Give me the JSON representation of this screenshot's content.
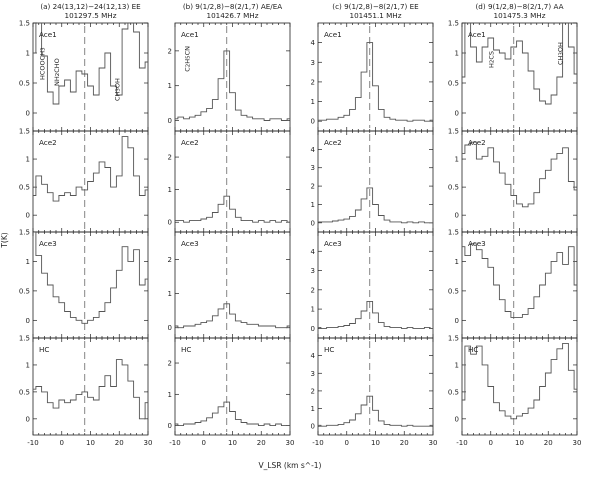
{
  "chart_data": {
    "type": "line",
    "line_shape": "step",
    "xlabel": "V_LSR (km s^-1)",
    "ylabel": "T(K)",
    "xlim": [
      -10,
      30
    ],
    "x_ticks": [
      "-10",
      "0",
      "10",
      "20",
      "30"
    ],
    "vlsr_marker": 8,
    "row_labels": [
      "Ace1",
      "Ace2",
      "Ace3",
      "HC"
    ],
    "columns": [
      {
        "title": "(a) 24(13,12)−24(12,13) EE",
        "subtitle": "101297.5 MHz",
        "ylim": [
          -0.3,
          1.5
        ],
        "y_ticks": [
          "0",
          "0.5",
          "1",
          "1.5"
        ],
        "annotations": [
          {
            "text": "HCOOCH3",
            "x": -6,
            "y": 0.55
          },
          {
            "text": "NH2CHO",
            "x": -1,
            "y": 0.45
          },
          {
            "text": "CH3OH",
            "x": 20,
            "y": 0.2
          }
        ],
        "rows": [
          {
            "x": [
              -10,
              -8,
              -6,
              -4,
              -2,
              0,
              2,
              4,
              6,
              8,
              10,
              12,
              14,
              16,
              18,
              20,
              22,
              24,
              26,
              28,
              30
            ],
            "y": [
              1.0,
              1.55,
              0.95,
              0.35,
              0.15,
              0.45,
              0.55,
              0.35,
              0.7,
              0.65,
              0.45,
              0.3,
              0.75,
              1.0,
              0.45,
              0.3,
              1.4,
              1.6,
              1.35,
              0.75,
              0.85
            ]
          },
          {
            "x": [
              -10,
              -8,
              -6,
              -4,
              -2,
              0,
              2,
              4,
              6,
              8,
              10,
              12,
              14,
              16,
              18,
              20,
              22,
              24,
              26,
              28,
              30
            ],
            "y": [
              0.35,
              0.7,
              0.55,
              0.4,
              0.25,
              0.35,
              0.4,
              0.35,
              0.5,
              0.45,
              0.6,
              0.75,
              0.95,
              0.85,
              0.5,
              0.7,
              1.4,
              1.2,
              0.7,
              0.35,
              0.45
            ]
          },
          {
            "x": [
              -10,
              -8,
              -6,
              -4,
              -2,
              0,
              2,
              4,
              6,
              8,
              10,
              12,
              14,
              16,
              18,
              20,
              22,
              24,
              26,
              28,
              30
            ],
            "y": [
              1.5,
              1.1,
              0.8,
              0.6,
              0.4,
              0.3,
              0.15,
              0.05,
              0.0,
              -0.05,
              0.0,
              0.05,
              0.15,
              0.3,
              0.55,
              0.85,
              1.25,
              1.0,
              1.2,
              0.6,
              0.7
            ]
          },
          {
            "x": [
              -10,
              -8,
              -6,
              -4,
              -2,
              0,
              2,
              4,
              6,
              8,
              10,
              12,
              14,
              16,
              18,
              20,
              22,
              24,
              26,
              28,
              30
            ],
            "y": [
              0.55,
              0.6,
              0.5,
              0.3,
              0.2,
              0.35,
              0.3,
              0.35,
              0.45,
              0.5,
              0.4,
              0.35,
              0.6,
              0.8,
              0.6,
              1.1,
              1.0,
              0.7,
              0.4,
              0.0,
              0.3
            ]
          }
        ]
      },
      {
        "title": "(b) 9(1/2,8)−8(2/1,7) AE/EA",
        "subtitle": "101426.7 MHz",
        "ylim": [
          -0.3,
          2.8
        ],
        "y_ticks": [
          "0",
          "1",
          "2"
        ],
        "annotations": [
          {
            "text": "C2H5CN",
            "x": -5,
            "y": 1.4
          }
        ],
        "rows": [
          {
            "x": [
              -10,
              -8,
              -6,
              -4,
              -2,
              0,
              2,
              4,
              6,
              8,
              10,
              12,
              14,
              16,
              18,
              20,
              22,
              24,
              26,
              28,
              30
            ],
            "y": [
              0.05,
              0.1,
              0.05,
              0.1,
              0.15,
              0.25,
              0.35,
              0.6,
              1.2,
              2.0,
              0.8,
              0.3,
              0.15,
              0.1,
              0.05,
              0.05,
              0.0,
              0.05,
              0.05,
              0.0,
              0.05
            ]
          },
          {
            "x": [
              -10,
              -8,
              -6,
              -4,
              -2,
              0,
              2,
              4,
              6,
              8,
              10,
              12,
              14,
              16,
              18,
              20,
              22,
              24,
              26,
              28,
              30
            ],
            "y": [
              0.05,
              0.05,
              0.0,
              0.05,
              0.05,
              0.1,
              0.15,
              0.3,
              0.55,
              0.8,
              0.4,
              0.15,
              0.05,
              0.05,
              0.0,
              0.05,
              0.0,
              0.05,
              0.0,
              0.05,
              0.0
            ]
          },
          {
            "x": [
              -10,
              -8,
              -6,
              -4,
              -2,
              0,
              2,
              4,
              6,
              8,
              10,
              12,
              14,
              16,
              18,
              20,
              22,
              24,
              26,
              28,
              30
            ],
            "y": [
              0.05,
              0.0,
              0.05,
              0.05,
              0.1,
              0.15,
              0.2,
              0.35,
              0.55,
              0.7,
              0.4,
              0.2,
              0.15,
              0.1,
              0.1,
              0.05,
              0.05,
              0.05,
              0.0,
              0.0,
              0.05
            ]
          },
          {
            "x": [
              -10,
              -8,
              -6,
              -4,
              -2,
              0,
              2,
              4,
              6,
              8,
              10,
              12,
              14,
              16,
              18,
              20,
              22,
              24,
              26,
              28,
              30
            ],
            "y": [
              0.05,
              0.0,
              0.05,
              0.05,
              0.1,
              0.15,
              0.25,
              0.4,
              0.6,
              0.75,
              0.45,
              0.2,
              0.1,
              0.05,
              0.05,
              0.0,
              0.05,
              0.0,
              0.05,
              0.0,
              0.0
            ]
          }
        ]
      },
      {
        "title": "(c) 9(1/2,8)−8(2/1,7) EE",
        "subtitle": "101451.1 MHz",
        "ylim": [
          -0.5,
          5.0
        ],
        "y_ticks": [
          "0",
          "1",
          "2",
          "3",
          "4"
        ],
        "annotations": [],
        "rows": [
          {
            "x": [
              -10,
              -8,
              -6,
              -4,
              -2,
              0,
              2,
              4,
              6,
              8,
              10,
              12,
              14,
              16,
              18,
              20,
              22,
              24,
              26,
              28,
              30
            ],
            "y": [
              0.05,
              0.05,
              0.1,
              0.1,
              0.2,
              0.3,
              0.6,
              1.2,
              2.5,
              4.0,
              1.8,
              0.6,
              0.2,
              0.1,
              0.05,
              0.05,
              0.0,
              0.05,
              0.05,
              0.0,
              0.05
            ]
          },
          {
            "x": [
              -10,
              -8,
              -6,
              -4,
              -2,
              0,
              2,
              4,
              6,
              8,
              10,
              12,
              14,
              16,
              18,
              20,
              22,
              24,
              26,
              28,
              30
            ],
            "y": [
              0.05,
              0.05,
              0.05,
              0.1,
              0.15,
              0.2,
              0.35,
              0.7,
              1.3,
              1.9,
              1.0,
              0.4,
              0.15,
              0.05,
              0.05,
              0.0,
              0.05,
              0.0,
              0.05,
              0.0,
              0.0
            ]
          },
          {
            "x": [
              -10,
              -8,
              -6,
              -4,
              -2,
              0,
              2,
              4,
              6,
              8,
              10,
              12,
              14,
              16,
              18,
              20,
              22,
              24,
              26,
              28,
              30
            ],
            "y": [
              0.05,
              0.0,
              0.05,
              0.05,
              0.1,
              0.15,
              0.25,
              0.5,
              0.9,
              1.4,
              0.8,
              0.3,
              0.1,
              0.05,
              0.05,
              0.0,
              0.05,
              0.0,
              0.0,
              0.05,
              0.0
            ]
          },
          {
            "x": [
              -10,
              -8,
              -6,
              -4,
              -2,
              0,
              2,
              4,
              6,
              8,
              10,
              12,
              14,
              16,
              18,
              20,
              22,
              24,
              26,
              28,
              30
            ],
            "y": [
              0.05,
              0.0,
              0.05,
              0.05,
              0.1,
              0.2,
              0.35,
              0.7,
              1.2,
              1.7,
              0.9,
              0.3,
              0.1,
              0.05,
              0.05,
              0.0,
              0.05,
              0.0,
              0.0,
              0.0,
              0.05
            ]
          }
        ]
      },
      {
        "title": "(d) 9(1/2,8)−8(2/1,7) AA",
        "subtitle": "101475.3 MHz",
        "ylim": [
          -0.3,
          1.5
        ],
        "y_ticks": [
          "0",
          "0.5",
          "1",
          "1.5"
        ],
        "annotations": [
          {
            "text": "H2CS",
            "x": 1,
            "y": 0.75
          },
          {
            "text": "CH3OH",
            "x": 25,
            "y": 0.8
          }
        ],
        "rows": [
          {
            "x": [
              -10,
              -8,
              -6,
              -4,
              -2,
              0,
              2,
              4,
              6,
              8,
              10,
              12,
              14,
              16,
              18,
              20,
              22,
              24,
              26,
              28,
              30
            ],
            "y": [
              0.6,
              1.6,
              1.1,
              0.85,
              1.1,
              1.25,
              1.05,
              1.0,
              0.9,
              1.1,
              1.2,
              1.0,
              0.7,
              0.4,
              0.2,
              0.15,
              0.3,
              0.6,
              1.6,
              1.1,
              0.65
            ]
          },
          {
            "x": [
              -10,
              -8,
              -6,
              -4,
              -2,
              0,
              2,
              4,
              6,
              8,
              10,
              12,
              14,
              16,
              18,
              20,
              22,
              24,
              26,
              28,
              30
            ],
            "y": [
              1.1,
              1.25,
              1.3,
              1.0,
              1.05,
              1.2,
              0.95,
              0.75,
              0.55,
              0.35,
              0.2,
              0.15,
              0.2,
              0.4,
              0.65,
              0.8,
              1.0,
              1.1,
              1.2,
              0.6,
              0.45
            ]
          },
          {
            "x": [
              -10,
              -8,
              -6,
              -4,
              -2,
              0,
              2,
              4,
              6,
              8,
              10,
              12,
              14,
              16,
              18,
              20,
              22,
              24,
              26,
              28,
              30
            ],
            "y": [
              1.25,
              1.1,
              1.3,
              1.2,
              1.05,
              0.9,
              0.6,
              0.35,
              0.15,
              0.05,
              0.05,
              0.1,
              0.2,
              0.4,
              0.6,
              0.8,
              1.0,
              1.15,
              0.95,
              1.25,
              0.6
            ]
          },
          {
            "x": [
              -10,
              -8,
              -6,
              -4,
              -2,
              0,
              2,
              4,
              6,
              8,
              10,
              12,
              14,
              16,
              18,
              20,
              22,
              24,
              26,
              28,
              30
            ],
            "y": [
              0.35,
              1.35,
              1.2,
              1.35,
              1.0,
              0.6,
              0.3,
              0.15,
              0.05,
              0.0,
              0.05,
              0.1,
              0.2,
              0.35,
              0.6,
              0.85,
              1.1,
              1.3,
              1.4,
              0.9,
              0.55
            ]
          }
        ]
      }
    ]
  }
}
